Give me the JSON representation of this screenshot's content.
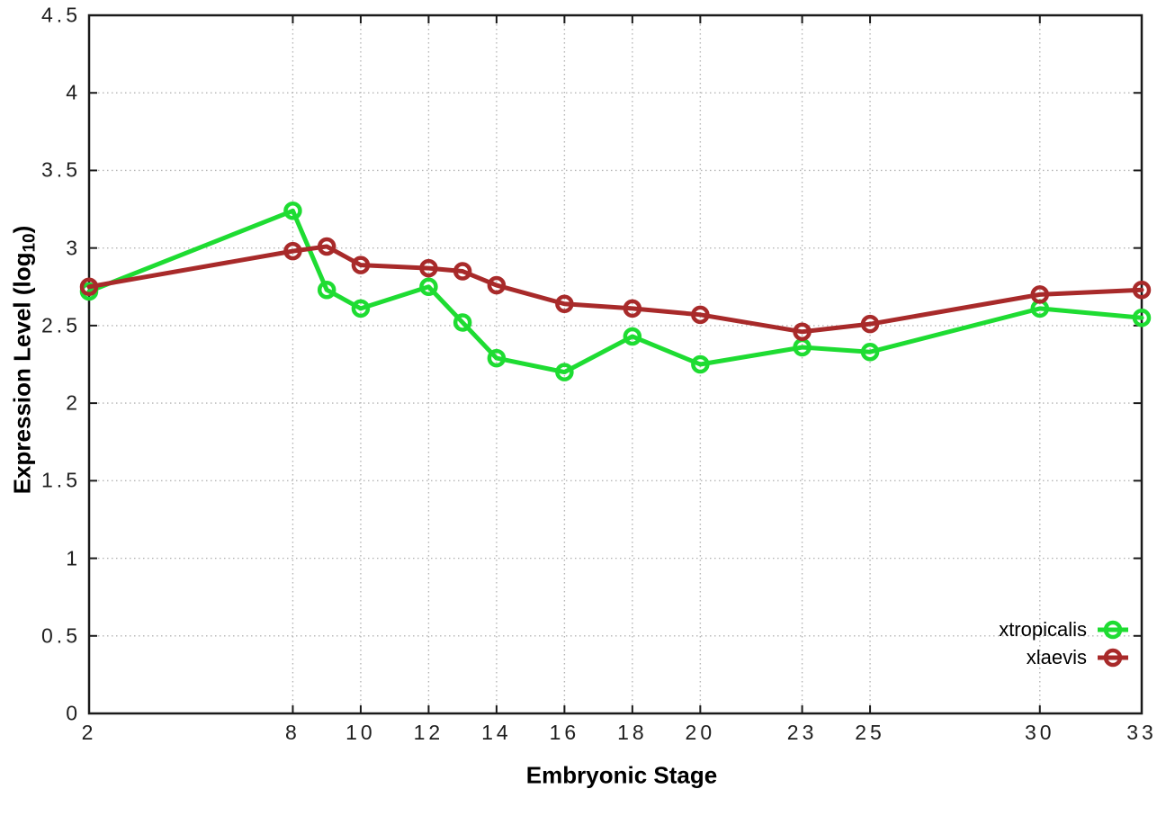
{
  "chart_data": {
    "type": "line",
    "title": "",
    "xlabel": "Embryonic Stage",
    "ylabel": "Expression Level (log10)",
    "ylabel_parts": {
      "main": "Expression Level (log",
      "sub": "10",
      "end": ")"
    },
    "x": [
      2,
      8,
      9,
      10,
      12,
      13,
      14,
      16,
      18,
      20,
      23,
      25,
      30,
      33
    ],
    "xticks": [
      2,
      8,
      10,
      12,
      14,
      16,
      18,
      20,
      23,
      25,
      30,
      33
    ],
    "yticks": [
      0,
      0.5,
      1,
      1.5,
      2,
      2.5,
      3,
      3.5,
      4,
      4.5
    ],
    "xlim": [
      2,
      33
    ],
    "ylim": [
      0,
      4.5
    ],
    "grid": true,
    "legend_position": "bottom-right",
    "series": [
      {
        "name": "xtropicalis",
        "color": "#1edc32",
        "values": [
          2.72,
          3.24,
          2.73,
          2.61,
          2.75,
          2.52,
          2.29,
          2.2,
          2.43,
          2.25,
          2.36,
          2.33,
          2.61,
          2.55
        ]
      },
      {
        "name": "xlaevis",
        "color": "#a82a2a",
        "values": [
          2.75,
          2.98,
          3.01,
          2.89,
          2.87,
          2.85,
          2.76,
          2.64,
          2.61,
          2.57,
          2.46,
          2.51,
          2.7,
          2.73
        ]
      }
    ],
    "style": {
      "axis_color": "#1a1a1a",
      "grid_color": "#b5b5b5",
      "tick_label_color": "#1f1f1f",
      "line_width": 5,
      "marker": "open-circle",
      "marker_radius": 8
    }
  }
}
